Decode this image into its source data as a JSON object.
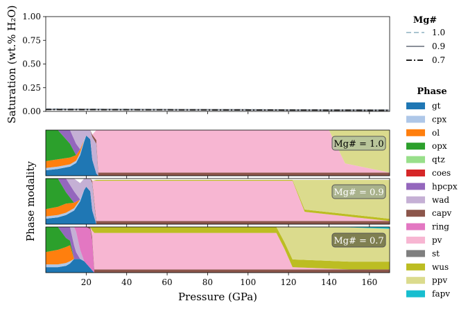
{
  "chart_data": [
    {
      "type": "line",
      "ylabel": "Saturation (wt.% H₂O)",
      "xlim": [
        0,
        170
      ],
      "ylim": [
        0,
        1.0
      ],
      "yticks": [
        "0.00",
        "0.25",
        "0.50",
        "0.75",
        "1.00"
      ],
      "legend": {
        "title": "Mg#",
        "placement": "top-right outside",
        "entries": [
          {
            "label": "1.0",
            "color": "#a9c4d0",
            "dash": "dashed"
          },
          {
            "label": "0.9",
            "color": "#8a8f98",
            "dash": "solid"
          },
          {
            "label": "0.7",
            "color": "#222222",
            "dash": "dashdot"
          }
        ]
      },
      "series": [
        {
          "name": "1.0",
          "x": [
            0,
            20,
            40,
            60,
            80,
            100,
            120,
            140,
            160,
            170
          ],
          "values": [
            0.025,
            0.023,
            0.021,
            0.019,
            0.018,
            0.017,
            0.016,
            0.015,
            0.014,
            0.014
          ]
        },
        {
          "name": "0.9",
          "x": [
            0,
            20,
            40,
            60,
            80,
            100,
            120,
            140,
            160,
            170
          ],
          "values": [
            0.022,
            0.021,
            0.019,
            0.018,
            0.017,
            0.016,
            0.015,
            0.014,
            0.013,
            0.013
          ]
        },
        {
          "name": "0.7",
          "x": [
            0,
            20,
            40,
            60,
            80,
            100,
            120,
            140,
            160,
            170
          ],
          "values": [
            0.02,
            0.019,
            0.018,
            0.017,
            0.016,
            0.015,
            0.014,
            0.013,
            0.012,
            0.012
          ]
        }
      ]
    },
    {
      "type": "area",
      "stacked": true,
      "xlabel": "Pressure (GPa)",
      "ylabel": "Phase modality",
      "xlim": [
        0,
        170
      ],
      "xticks": [
        "20",
        "40",
        "60",
        "80",
        "100",
        "120",
        "140",
        "160"
      ],
      "legend": {
        "title": "Phase",
        "placement": "right outside",
        "entries": [
          {
            "label": "gt",
            "color": "#1f77b4"
          },
          {
            "label": "cpx",
            "color": "#aec7e8"
          },
          {
            "label": "ol",
            "color": "#ff7f0e"
          },
          {
            "label": "opx",
            "color": "#2ca02c"
          },
          {
            "label": "qtz",
            "color": "#98df8a"
          },
          {
            "label": "coes",
            "color": "#d62728"
          },
          {
            "label": "hpcpx",
            "color": "#9467bd"
          },
          {
            "label": "wad",
            "color": "#c5b0d5"
          },
          {
            "label": "capv",
            "color": "#8c564b"
          },
          {
            "label": "ring",
            "color": "#e377c2"
          },
          {
            "label": "pv",
            "color": "#f7b6d2"
          },
          {
            "label": "st",
            "color": "#7f7f7f"
          },
          {
            "label": "wus",
            "color": "#bcbd22"
          },
          {
            "label": "ppv",
            "color": "#dbdb8d"
          },
          {
            "label": "fapv",
            "color": "#17becf"
          }
        ]
      },
      "panels": [
        {
          "annotation": "Mg# = 1.0",
          "annotation_color": "#b3c29c",
          "annotation_text_color": "#000000",
          "x": [
            0,
            6,
            12,
            15,
            17,
            19,
            20,
            22,
            23,
            25,
            26,
            28,
            140,
            148,
            170
          ],
          "layers": [
            {
              "phase": "gt",
              "values": [
                0.12,
                0.15,
                0.2,
                0.28,
                0.45,
                0.75,
                0.88,
                0.8,
                0.35,
                0.05,
                0.0,
                0.0,
                0.0,
                0.0,
                0.0
              ]
            },
            {
              "phase": "cpx",
              "values": [
                0.05,
                0.05,
                0.05,
                0.05,
                0.05,
                0.04,
                0.0,
                0.0,
                0.0,
                0.0,
                0.0,
                0.0,
                0.0,
                0.0,
                0.0
              ]
            },
            {
              "phase": "ol",
              "values": [
                0.15,
                0.16,
                0.15,
                0.12,
                0.08,
                0.0,
                0.0,
                0.0,
                0.0,
                0.0,
                0.0,
                0.0,
                0.0,
                0.0,
                0.0
              ]
            },
            {
              "phase": "opx",
              "values": [
                0.68,
                0.64,
                0.3,
                0.0,
                0.0,
                0.0,
                0.0,
                0.0,
                0.0,
                0.0,
                0.0,
                0.0,
                0.0,
                0.0,
                0.0
              ]
            },
            {
              "phase": "hpcpx",
              "values": [
                0.0,
                0.0,
                0.3,
                0.25,
                0.0,
                0.0,
                0.0,
                0.0,
                0.0,
                0.0,
                0.0,
                0.0,
                0.0,
                0.0,
                0.0
              ]
            },
            {
              "phase": "wad",
              "values": [
                0.0,
                0.0,
                0.0,
                0.3,
                0.42,
                0.21,
                0.12,
                0.2,
                0.5,
                0.65,
                0.0,
                0.0,
                0.0,
                0.0,
                0.0
              ]
            },
            {
              "phase": "capv",
              "values": [
                0.0,
                0.0,
                0.0,
                0.0,
                0.0,
                0.0,
                0.0,
                0.0,
                0.05,
                0.08,
                0.07,
                0.07,
                0.07,
                0.07,
                0.07
              ]
            },
            {
              "phase": "pv",
              "values": [
                0.0,
                0.0,
                0.0,
                0.0,
                0.0,
                0.0,
                0.0,
                0.0,
                0.0,
                0.22,
                0.93,
                0.93,
                0.93,
                0.2,
                0.0
              ]
            },
            {
              "phase": "ppv",
              "values": [
                0.0,
                0.0,
                0.0,
                0.0,
                0.0,
                0.0,
                0.0,
                0.0,
                0.0,
                0.0,
                0.0,
                0.0,
                0.0,
                0.73,
                0.93
              ]
            }
          ]
        },
        {
          "annotation": "Mg# = 0.9",
          "annotation_color": "#a0aa8c",
          "annotation_text_color": "#ffffff",
          "x": [
            0,
            6,
            10,
            14,
            17,
            19,
            20,
            22,
            23,
            25,
            26,
            122,
            128,
            170
          ],
          "layers": [
            {
              "phase": "gt",
              "values": [
                0.12,
                0.15,
                0.2,
                0.3,
                0.5,
                0.75,
                0.82,
                0.72,
                0.3,
                0.0,
                0.0,
                0.0,
                0.0,
                0.0
              ]
            },
            {
              "phase": "cpx",
              "values": [
                0.05,
                0.05,
                0.05,
                0.05,
                0.04,
                0.0,
                0.0,
                0.0,
                0.0,
                0.0,
                0.0,
                0.0,
                0.0,
                0.0
              ]
            },
            {
              "phase": "ol",
              "values": [
                0.16,
                0.18,
                0.2,
                0.12,
                0.0,
                0.0,
                0.0,
                0.0,
                0.0,
                0.0,
                0.0,
                0.0,
                0.0,
                0.0
              ]
            },
            {
              "phase": "opx",
              "values": [
                0.67,
                0.62,
                0.25,
                0.0,
                0.0,
                0.0,
                0.0,
                0.0,
                0.0,
                0.0,
                0.0,
                0.0,
                0.0,
                0.0
              ]
            },
            {
              "phase": "hpcpx",
              "values": [
                0.0,
                0.0,
                0.3,
                0.25,
                0.0,
                0.0,
                0.0,
                0.0,
                0.0,
                0.0,
                0.0,
                0.0,
                0.0,
                0.0
              ]
            },
            {
              "phase": "wad",
              "values": [
                0.0,
                0.0,
                0.0,
                0.28,
                0.36,
                0.25,
                0.18,
                0.28,
                0.6,
                0.0,
                0.0,
                0.0,
                0.0,
                0.0
              ]
            },
            {
              "phase": "capv",
              "values": [
                0.0,
                0.0,
                0.0,
                0.0,
                0.0,
                0.0,
                0.0,
                0.0,
                0.05,
                0.07,
                0.07,
                0.07,
                0.07,
                0.07
              ]
            },
            {
              "phase": "pv",
              "values": [
                0.0,
                0.0,
                0.0,
                0.0,
                0.0,
                0.0,
                0.0,
                0.0,
                0.0,
                0.88,
                0.88,
                0.88,
                0.2,
                0.0
              ]
            },
            {
              "phase": "wus",
              "values": [
                0.0,
                0.0,
                0.0,
                0.0,
                0.0,
                0.0,
                0.0,
                0.0,
                0.0,
                0.02,
                0.02,
                0.02,
                0.05,
                0.05
              ]
            },
            {
              "phase": "ppv",
              "values": [
                0.0,
                0.0,
                0.0,
                0.0,
                0.0,
                0.0,
                0.0,
                0.0,
                0.0,
                0.0,
                0.0,
                0.0,
                0.65,
                0.85
              ]
            }
          ]
        },
        {
          "annotation": "Mg# = 0.7",
          "annotation_color": "#6e6e46",
          "annotation_text_color": "#ffffff",
          "x": [
            0,
            6,
            10,
            12,
            14,
            15,
            17,
            19,
            20,
            22,
            23,
            24,
            114,
            118,
            122,
            150,
            170
          ],
          "layers": [
            {
              "phase": "gt",
              "values": [
                0.12,
                0.12,
                0.15,
                0.2,
                0.3,
                0.3,
                0.3,
                0.25,
                0.2,
                0.1,
                0.05,
                0.0,
                0.0,
                0.0,
                0.0,
                0.0,
                0.0
              ]
            },
            {
              "phase": "cpx",
              "values": [
                0.06,
                0.06,
                0.06,
                0.05,
                0.0,
                0.0,
                0.0,
                0.0,
                0.0,
                0.0,
                0.0,
                0.0,
                0.0,
                0.0,
                0.0,
                0.0,
                0.0
              ]
            },
            {
              "phase": "ol",
              "values": [
                0.27,
                0.32,
                0.35,
                0.35,
                0.0,
                0.0,
                0.0,
                0.0,
                0.0,
                0.0,
                0.0,
                0.0,
                0.0,
                0.0,
                0.0,
                0.0,
                0.0
              ]
            },
            {
              "phase": "opx",
              "values": [
                0.55,
                0.5,
                0.2,
                0.1,
                0.0,
                0.0,
                0.0,
                0.0,
                0.0,
                0.0,
                0.0,
                0.0,
                0.0,
                0.0,
                0.0,
                0.0,
                0.0
              ]
            },
            {
              "phase": "hpcpx",
              "values": [
                0.0,
                0.0,
                0.24,
                0.3,
                0.3,
                0.15,
                0.0,
                0.0,
                0.0,
                0.0,
                0.0,
                0.0,
                0.0,
                0.0,
                0.0,
                0.0,
                0.0
              ]
            },
            {
              "phase": "wad",
              "values": [
                0.0,
                0.0,
                0.0,
                0.0,
                0.4,
                0.45,
                0.2,
                0.0,
                0.0,
                0.0,
                0.0,
                0.0,
                0.0,
                0.0,
                0.0,
                0.0,
                0.0
              ]
            },
            {
              "phase": "ring",
              "values": [
                0.0,
                0.0,
                0.0,
                0.0,
                0.0,
                0.1,
                0.5,
                0.75,
                0.8,
                0.85,
                0.65,
                0.0,
                0.0,
                0.0,
                0.0,
                0.0,
                0.0
              ]
            },
            {
              "phase": "capv",
              "values": [
                0.0,
                0.0,
                0.0,
                0.0,
                0.0,
                0.0,
                0.0,
                0.0,
                0.0,
                0.05,
                0.07,
                0.07,
                0.07,
                0.07,
                0.07,
                0.07,
                0.07
              ]
            },
            {
              "phase": "pv",
              "values": [
                0.0,
                0.0,
                0.0,
                0.0,
                0.0,
                0.0,
                0.0,
                0.0,
                0.0,
                0.0,
                0.15,
                0.8,
                0.8,
                0.45,
                0.05,
                0.0,
                0.0
              ]
            },
            {
              "phase": "wus",
              "values": [
                0.0,
                0.0,
                0.0,
                0.0,
                0.0,
                0.0,
                0.0,
                0.0,
                0.0,
                0.0,
                0.08,
                0.13,
                0.13,
                0.15,
                0.17,
                0.17,
                0.17
              ]
            },
            {
              "phase": "ppv",
              "values": [
                0.0,
                0.0,
                0.0,
                0.0,
                0.0,
                0.0,
                0.0,
                0.0,
                0.0,
                0.0,
                0.0,
                0.0,
                0.0,
                0.33,
                0.71,
                0.75,
                0.72
              ]
            },
            {
              "phase": "fapv",
              "values": [
                0.0,
                0.0,
                0.0,
                0.0,
                0.0,
                0.0,
                0.0,
                0.0,
                0.0,
                0.0,
                0.0,
                0.0,
                0.0,
                0.0,
                0.0,
                0.01,
                0.04
              ]
            }
          ]
        }
      ]
    }
  ]
}
